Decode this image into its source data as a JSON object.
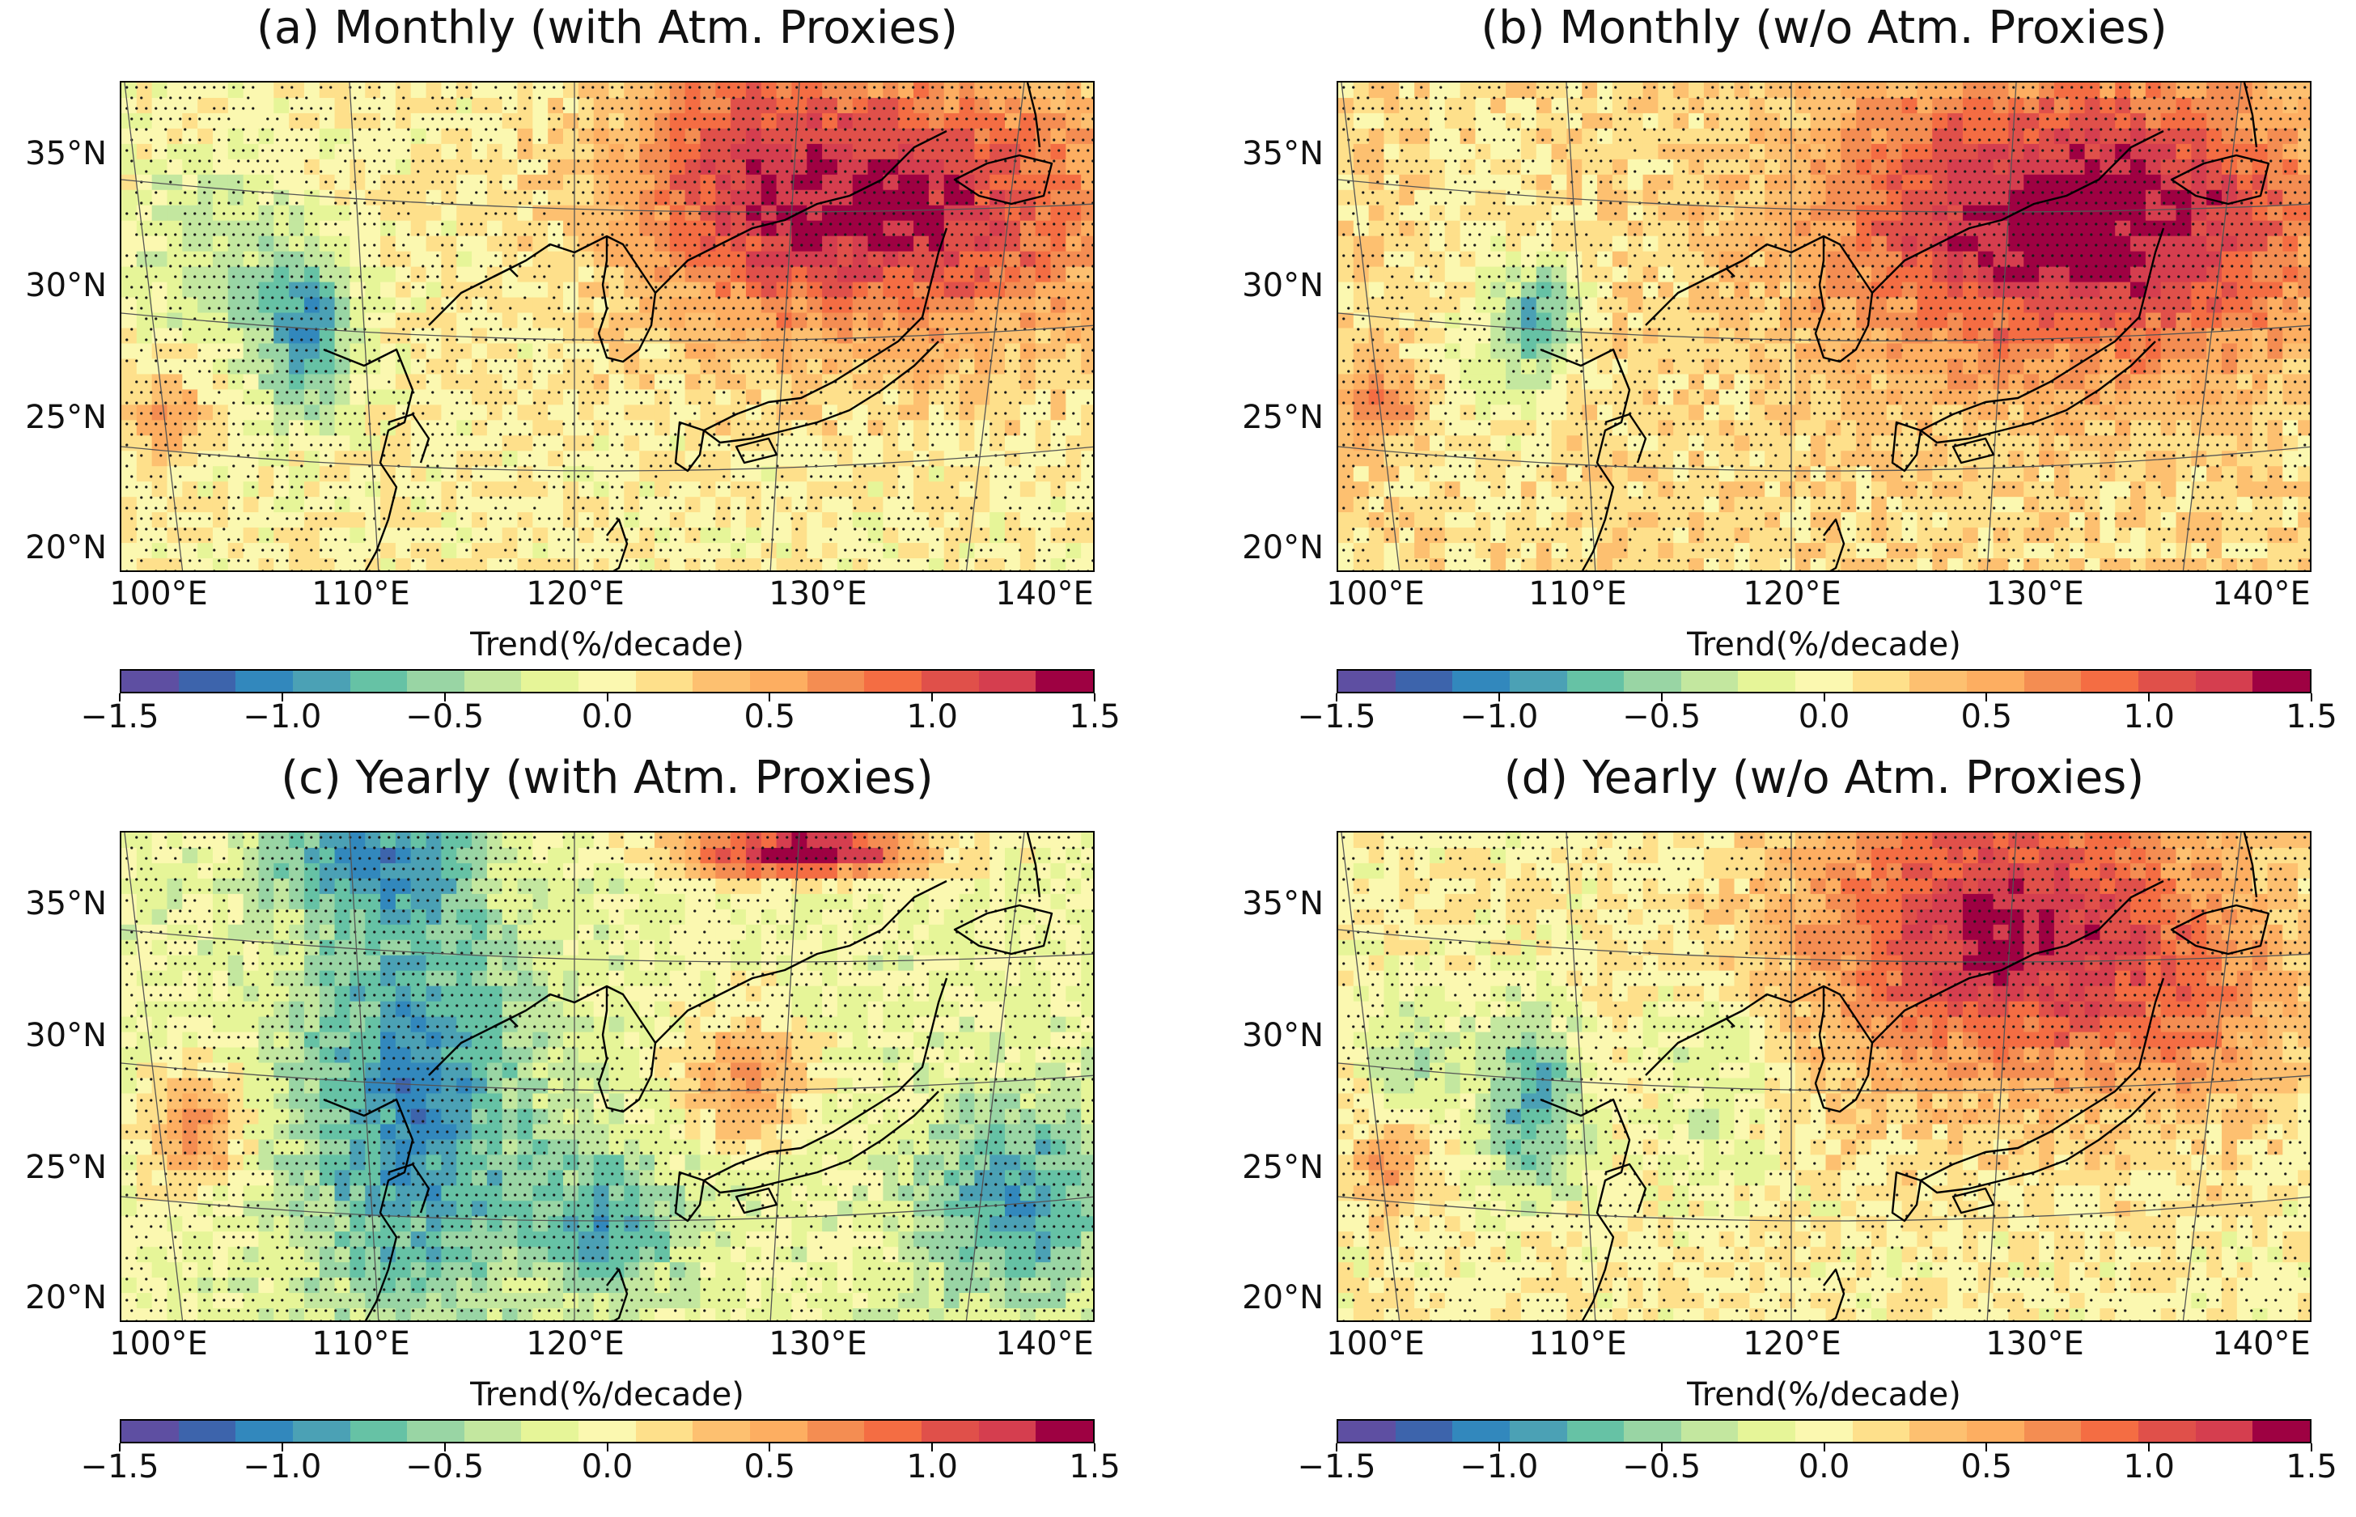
{
  "figure": {
    "colorbar_label": "Trend(%/decade)",
    "colorbar_ticks": [
      "−1.5",
      "−1.0",
      "−0.5",
      "0.0",
      "0.5",
      "1.0",
      "1.5"
    ],
    "colorbar_range": [
      -1.5,
      1.5
    ],
    "lat_labels": [
      "35°N",
      "30°N",
      "25°N",
      "20°N"
    ],
    "lon_labels": [
      "100°E",
      "110°E",
      "120°E",
      "130°E",
      "140°E"
    ],
    "colors": {
      "scale": [
        "#5e4fa2",
        "#3d64ac",
        "#3288bd",
        "#4ba1b5",
        "#66c2a5",
        "#99d5a4",
        "#c3e79f",
        "#e6f598",
        "#fbf8b0",
        "#fee08b",
        "#fdc070",
        "#fdae61",
        "#f48d52",
        "#f46d43",
        "#e0504a",
        "#d53e4f",
        "#9e0142"
      ],
      "stipple": "#1a1a1a",
      "coast": "#000000",
      "grid": "#555555"
    }
  },
  "panels": [
    {
      "title": "(a) Monthly (with Atm. Proxies)"
    },
    {
      "title": "(b) Monthly (w/o Atm. Proxies)"
    },
    {
      "title": "(c) Yearly (with Atm. Proxies)"
    },
    {
      "title": "(d) Yearly (w/o Atm. Proxies)"
    }
  ]
}
